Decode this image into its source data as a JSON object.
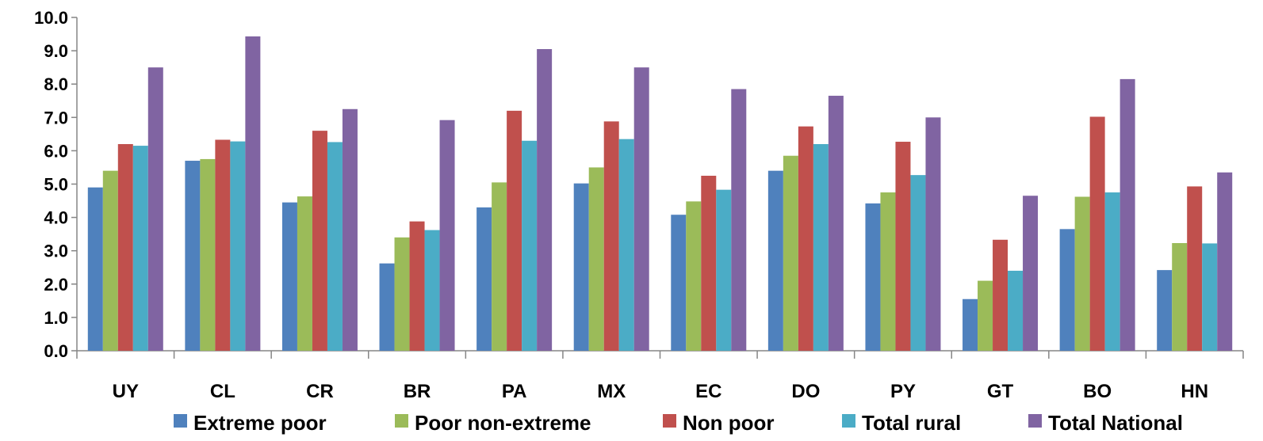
{
  "chart_data": {
    "type": "bar",
    "title": "",
    "xlabel": "",
    "ylabel": "",
    "ylim": [
      0,
      10
    ],
    "yticks": [
      "0.0",
      "1.0",
      "2.0",
      "3.0",
      "4.0",
      "5.0",
      "6.0",
      "7.0",
      "8.0",
      "9.0",
      "10.0"
    ],
    "grid": false,
    "legend_position": "bottom",
    "categories": [
      "UY",
      "CL",
      "CR",
      "BR",
      "PA",
      "MX",
      "EC",
      "DO",
      "PY",
      "GT",
      "BO",
      "HN"
    ],
    "series": [
      {
        "name": "Extreme poor",
        "color": "#4F81BD",
        "values": [
          4.9,
          5.7,
          4.45,
          2.62,
          4.3,
          5.02,
          4.08,
          5.4,
          4.42,
          1.55,
          3.65,
          2.42
        ]
      },
      {
        "name": "Poor non-extreme",
        "color": "#9BBB59",
        "values": [
          5.4,
          5.75,
          4.63,
          3.4,
          5.05,
          5.5,
          4.48,
          5.85,
          4.75,
          2.1,
          4.62,
          3.23
        ]
      },
      {
        "name": "Non poor",
        "color": "#C0504D",
        "values": [
          6.2,
          6.33,
          6.6,
          3.88,
          7.2,
          6.88,
          5.25,
          6.73,
          6.27,
          3.33,
          7.02,
          4.93
        ]
      },
      {
        "name": "Total rural",
        "color": "#4BACC6",
        "values": [
          6.15,
          6.28,
          6.26,
          3.62,
          6.3,
          6.35,
          4.83,
          6.2,
          5.27,
          2.4,
          4.75,
          3.22
        ]
      },
      {
        "name": "Total National",
        "color": "#8064A2",
        "values": [
          8.5,
          9.43,
          7.25,
          6.92,
          9.05,
          8.5,
          7.85,
          7.65,
          7.0,
          4.65,
          8.15,
          5.35
        ]
      }
    ]
  }
}
